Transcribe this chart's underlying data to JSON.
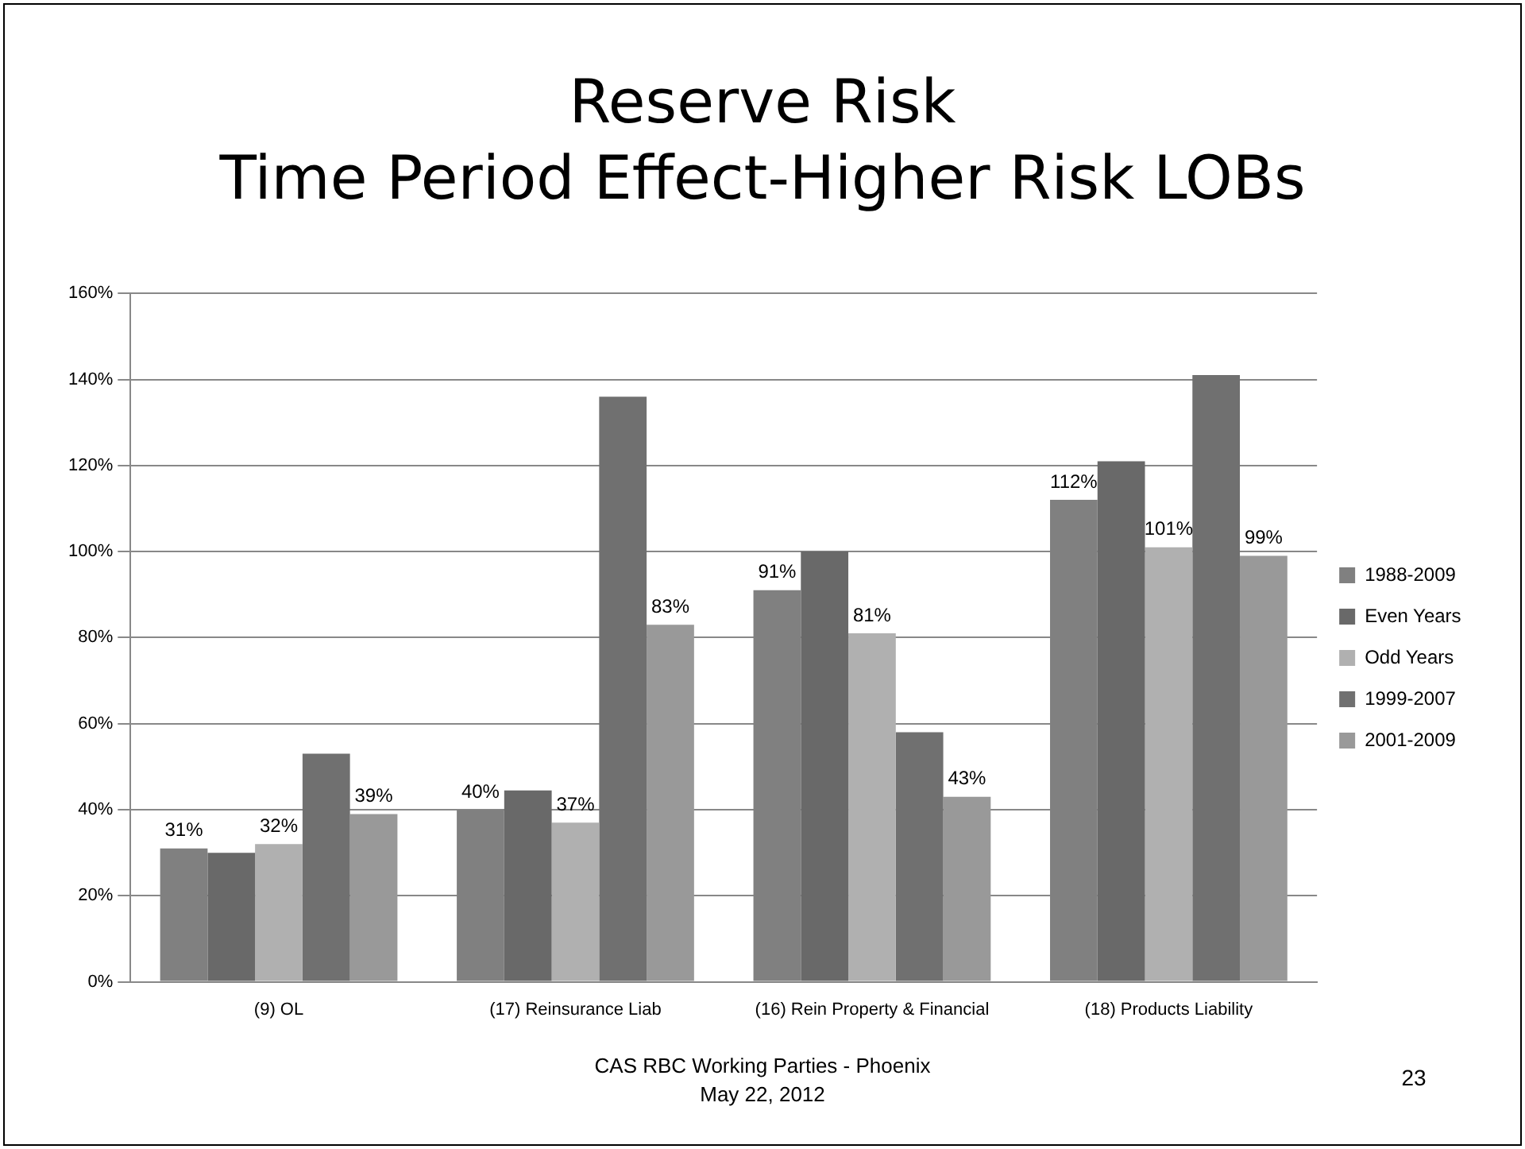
{
  "chart_data": {
    "type": "bar",
    "title": "Reserve Risk\nTime Period Effect-Higher Risk LOBs",
    "categories": [
      "(9) OL",
      "(17) Reinsurance Liab",
      "(16) Rein Property & Financial",
      "(18) Products Liability"
    ],
    "series": [
      {
        "name": "1988-2009",
        "color": "#808080",
        "values": [
          31,
          40,
          91,
          112
        ],
        "value_labels": [
          "31%",
          "40%",
          "91%",
          "112%"
        ]
      },
      {
        "name": "Even Years",
        "color": "#696969",
        "values": [
          30,
          44.5,
          100,
          121
        ]
      },
      {
        "name": "Odd Years",
        "color": "#b0b0b0",
        "values": [
          32,
          37,
          81,
          101
        ],
        "value_labels": [
          "32%",
          "37%",
          "81%",
          "101%"
        ]
      },
      {
        "name": "1999-2007",
        "color": "#707070",
        "values": [
          53,
          136,
          58,
          141
        ]
      },
      {
        "name": "2001-2009",
        "color": "#999999",
        "values": [
          39,
          83,
          43,
          99
        ],
        "value_labels": [
          "39%",
          "83%",
          "43%",
          "99%"
        ]
      }
    ],
    "ylim": [
      0,
      160
    ],
    "yticks": [
      {
        "value": 0,
        "label": "0%"
      },
      {
        "value": 20,
        "label": "20%"
      },
      {
        "value": 40,
        "label": "40%"
      },
      {
        "value": 60,
        "label": "60%"
      },
      {
        "value": 80,
        "label": "80%"
      },
      {
        "value": 100,
        "label": "100%"
      },
      {
        "value": 120,
        "label": "120%"
      },
      {
        "value": 140,
        "label": "140%"
      },
      {
        "value": 160,
        "label": "160%"
      }
    ],
    "grid": "y",
    "legend": "right",
    "annotations": [
      "CAS RBC Working Parties - Phoenix\nMay 22, 2012",
      "23"
    ]
  }
}
